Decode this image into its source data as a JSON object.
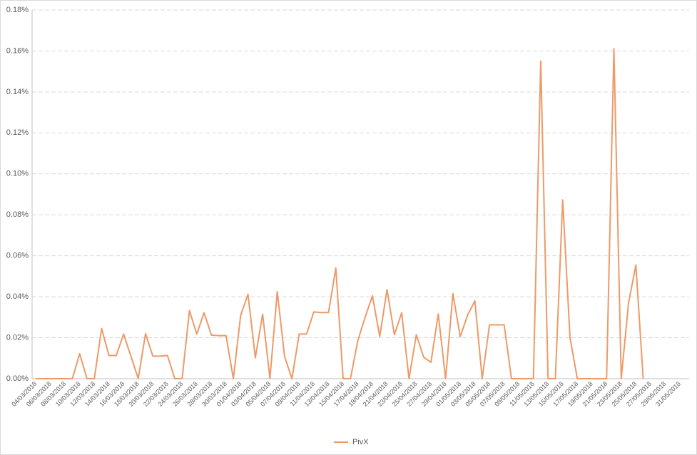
{
  "chart_data": {
    "type": "line",
    "categories": [
      "04/03/2018",
      null,
      "06/03/2018",
      null,
      "08/03/2018",
      null,
      "10/03/2018",
      null,
      "12/03/2018",
      null,
      "14/03/2018",
      null,
      "16/03/2018",
      null,
      "18/03/2018",
      null,
      "20/03/2018",
      null,
      "22/03/2018",
      null,
      "24/03/2018",
      null,
      "26/03/2018",
      null,
      "28/03/2018",
      null,
      "30/03/2018",
      null,
      "01/04/2018",
      null,
      "03/04/2018",
      null,
      "05/04/2018",
      null,
      "07/04/2018",
      null,
      "09/04/2018",
      null,
      "11/04/2018",
      null,
      "13/04/2018",
      null,
      "15/04/2018",
      null,
      "17/04/2018",
      null,
      "19/04/2018",
      null,
      "21/04/2018",
      null,
      "23/04/2018",
      null,
      "25/04/2018",
      null,
      "27/04/2018",
      null,
      "29/04/2018",
      null,
      "01/05/2018",
      null,
      "03/05/2018",
      null,
      "05/05/2018",
      null,
      "07/05/2018",
      null,
      "09/05/2018",
      null,
      "11/05/2018",
      null,
      "13/05/2018",
      null,
      "15/05/2018",
      null,
      "17/05/2018",
      null,
      "19/05/2018",
      null,
      "21/05/2018",
      null,
      "23/05/2018",
      null,
      "25/05/2018",
      null,
      "27/05/2018",
      null,
      "29/05/2018",
      null,
      "31/05/2018"
    ],
    "series": [
      {
        "name": "PivX",
        "color": "#ed9a68",
        "values": [
          0,
          0,
          0,
          0,
          0,
          0,
          0.0122,
          0,
          0,
          0.0245,
          0.0113,
          0.0113,
          0.0218,
          0.011,
          0,
          0.022,
          0.011,
          0.011,
          0.0113,
          0,
          0,
          0.0333,
          0.0218,
          0.0322,
          0.0213,
          0.021,
          0.021,
          0,
          0.031,
          0.0412,
          0.0102,
          0.0315,
          0,
          0.0425,
          0.0108,
          0,
          0.0218,
          0.0218,
          0.0326,
          0.0323,
          0.0323,
          0.054,
          0,
          0,
          0.0185,
          0.03,
          0.0405,
          0.0206,
          0.0435,
          0.0215,
          0.0322,
          0,
          0.0215,
          0.0105,
          0.008,
          0.0316,
          0,
          0.0415,
          0.0205,
          0.031,
          0.038,
          0,
          0.0263,
          0.0263,
          0.0263,
          0,
          0,
          0,
          0,
          0.155,
          0,
          0,
          0.0873,
          0.02,
          0,
          0,
          0,
          0,
          0,
          0.161,
          0,
          0.037,
          0.0555,
          0,
          null,
          null,
          null,
          null,
          null
        ]
      }
    ],
    "ylim": [
      0,
      0.18
    ],
    "yticks": [
      {
        "value": 0,
        "label": "0.00%"
      },
      {
        "value": 0.02,
        "label": "0.02%"
      },
      {
        "value": 0.04,
        "label": "0.04%"
      },
      {
        "value": 0.06,
        "label": "0.06%"
      },
      {
        "value": 0.08,
        "label": "0.08%"
      },
      {
        "value": 0.1,
        "label": "0.10%"
      },
      {
        "value": 0.12,
        "label": "0.12%"
      },
      {
        "value": 0.14,
        "label": "0.14%"
      },
      {
        "value": 0.16,
        "label": "0.16%"
      },
      {
        "value": 0.18,
        "label": "0.18%"
      }
    ],
    "grid": true,
    "legend": "bottom"
  }
}
